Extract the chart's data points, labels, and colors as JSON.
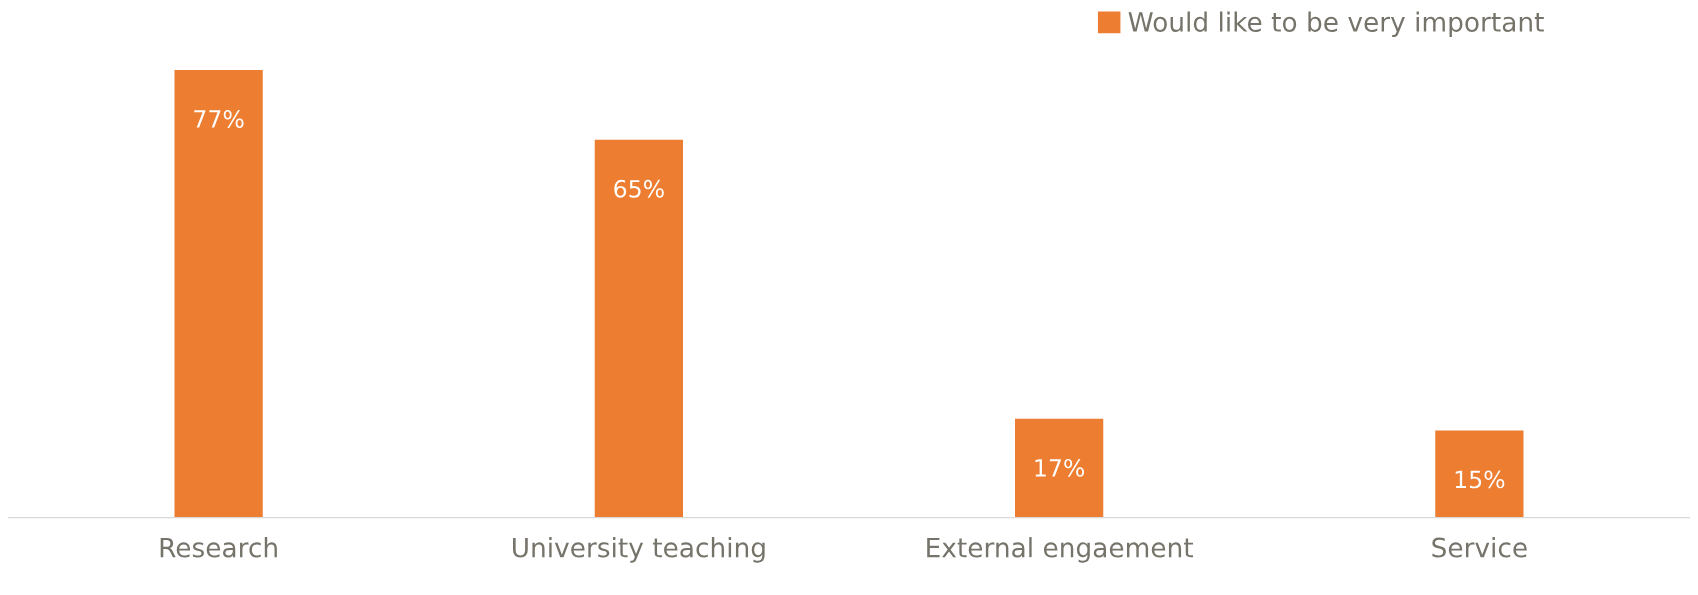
{
  "chart_data": {
    "type": "bar",
    "categories": [
      "Research",
      "University teaching",
      "External engaement",
      "Service"
    ],
    "series": [
      {
        "name": "Would like to be very important",
        "color": "#ed7d31",
        "values": [
          77,
          65,
          17,
          15
        ],
        "value_labels": [
          "77%",
          "65%",
          "17%",
          "15%"
        ]
      }
    ],
    "legend": "top right",
    "grid": false
  }
}
